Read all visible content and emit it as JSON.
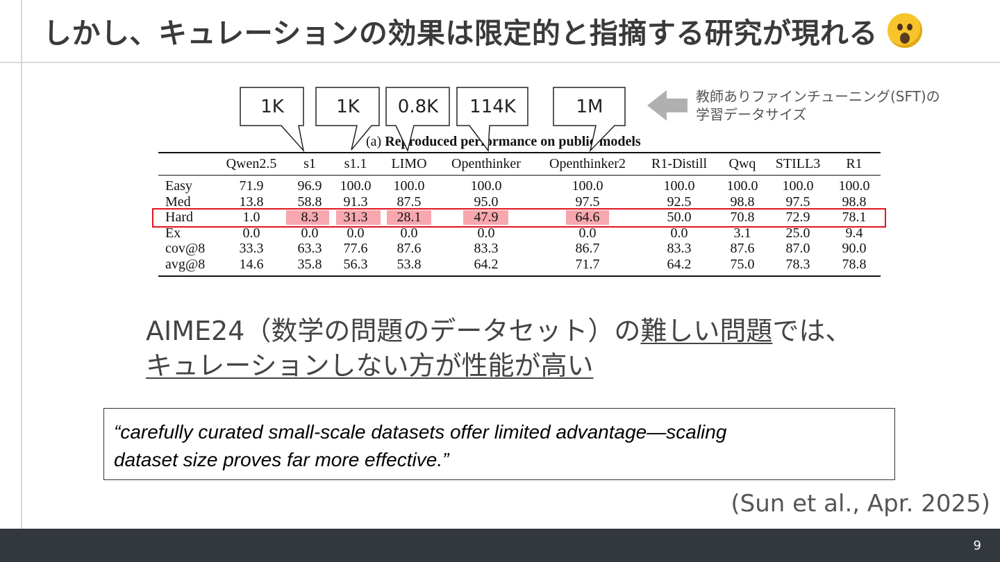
{
  "slide": {
    "title": "しかし、キュレーションの効果は限定的と指摘する研究が現れる",
    "title_emoji": "astonished-face-emoji",
    "page_number": "9"
  },
  "callouts": {
    "labels": [
      "1K",
      "1K",
      "0.8K",
      "114K",
      "1M"
    ],
    "note_line1": "教師ありファインチューニング(SFT)の",
    "note_line2": "学習データサイズ",
    "arrow_icon": "left-arrow-icon"
  },
  "table": {
    "caption_prefix": "(a) ",
    "caption": "Reproduced performance on public models",
    "headers": [
      "Qwen2.5",
      "s1",
      "s1.1",
      "LIMO",
      "Openthinker",
      "Openthinker2",
      "R1-Distill",
      "Qwq",
      "STILL3",
      "R1"
    ],
    "rows": [
      {
        "label": "Easy",
        "values": [
          "71.9",
          "96.9",
          "100.0",
          "100.0",
          "100.0",
          "100.0",
          "100.0",
          "100.0",
          "100.0",
          "100.0"
        ]
      },
      {
        "label": "Med",
        "values": [
          "13.8",
          "58.8",
          "91.3",
          "87.5",
          "95.0",
          "97.5",
          "92.5",
          "98.8",
          "97.5",
          "98.8"
        ]
      },
      {
        "label": "Hard",
        "values": [
          "1.0",
          "8.3",
          "31.3",
          "28.1",
          "47.9",
          "64.6",
          "50.0",
          "70.8",
          "72.9",
          "78.1"
        ]
      },
      {
        "label": "Ex",
        "values": [
          "0.0",
          "0.0",
          "0.0",
          "0.0",
          "0.0",
          "0.0",
          "0.0",
          "3.1",
          "25.0",
          "9.4"
        ]
      },
      {
        "label": "cov@8",
        "values": [
          "33.3",
          "63.3",
          "77.6",
          "87.6",
          "83.3",
          "86.7",
          "83.3",
          "87.6",
          "87.0",
          "90.0"
        ]
      },
      {
        "label": "avg@8",
        "values": [
          "14.6",
          "35.8",
          "56.3",
          "53.8",
          "64.2",
          "71.7",
          "64.2",
          "75.0",
          "78.3",
          "78.8"
        ]
      }
    ],
    "highlight_color": "#f6a8ae",
    "box_color": "#e0141e"
  },
  "body": {
    "line1_a": "AIME24（数学の問題のデータセット）の",
    "line1_b": "難しい問題",
    "line1_c": "では、",
    "line2": "キュレーションしない方が性能が高い"
  },
  "quote": {
    "line1": "“carefully curated small-scale datasets offer limited advantage—scaling",
    "line2": "dataset size proves far more effective.”"
  },
  "citation": "(Sun et al., Apr. 2025)"
}
